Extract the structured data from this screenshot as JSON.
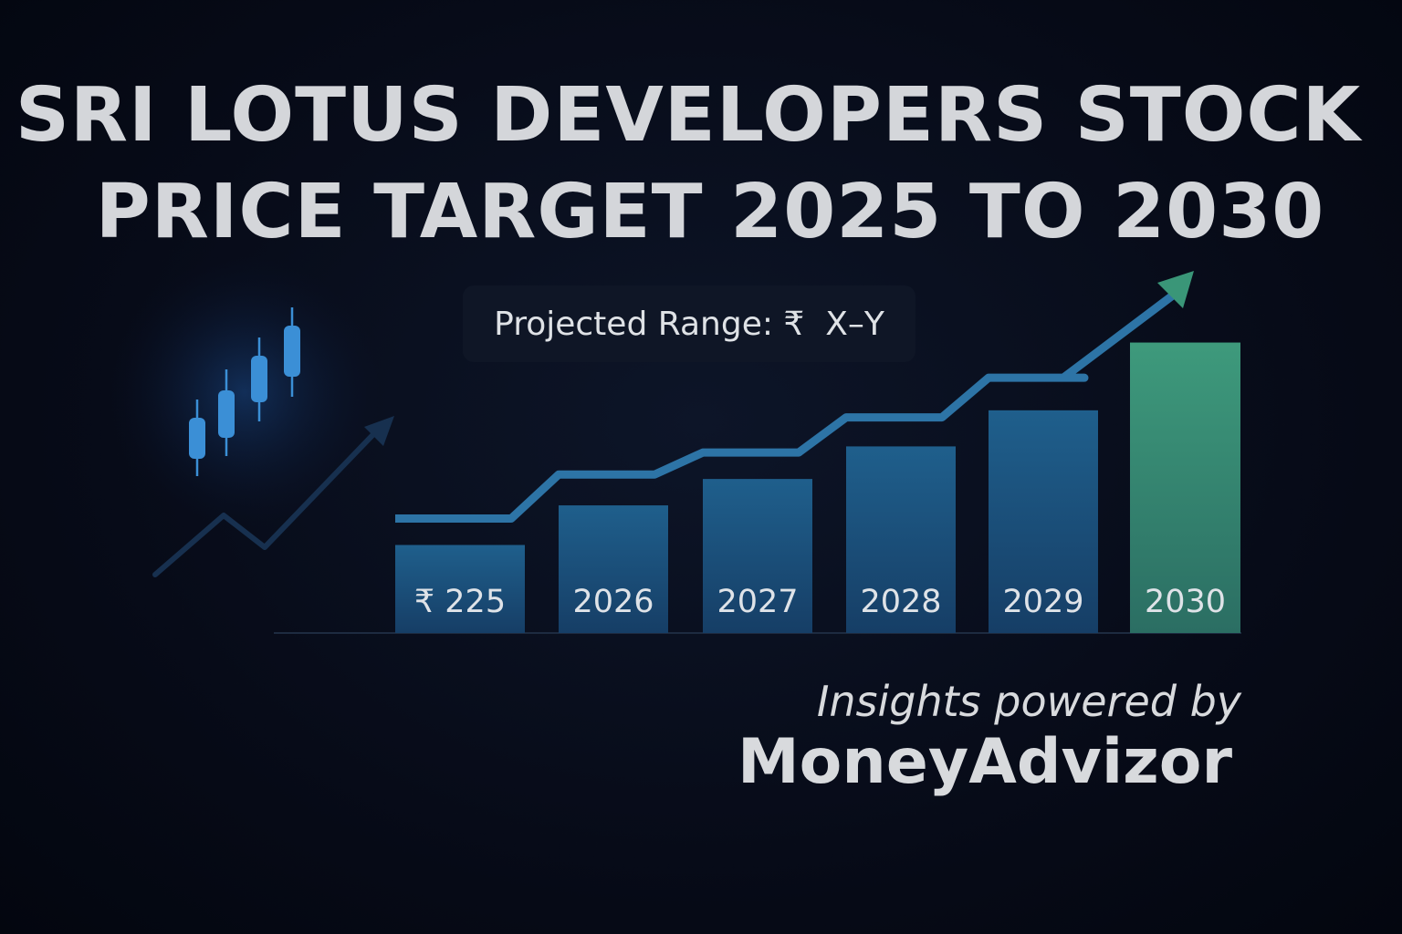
{
  "title_lines": [
    "SRI LOTUS DEVELOPERS STOCK",
    "PRICE TARGET 2025 TO 2030"
  ],
  "projected_range": "Projected Range: ₹  X–Y",
  "credit": {
    "line1": "Insights powered by",
    "brand": "MoneyAdvizor"
  },
  "colors": {
    "bar_blue_top": "#1f5f8c",
    "bar_blue_bottom": "#163e66",
    "bar_green_top": "#3e9a7c",
    "bar_green_bottom": "#2b6e63",
    "trend_line": "#2d74a6",
    "arrow_green": "#3a9678",
    "candles": "#3b8fd6"
  },
  "chart_data": {
    "type": "bar",
    "categories": [
      "₹ 225",
      "2026",
      "2027",
      "2028",
      "2029",
      "2030"
    ],
    "values": [
      1.0,
      1.45,
      1.75,
      2.12,
      2.53,
      3.3
    ],
    "highlight_index": 5,
    "trend_line": [
      1.3,
      1.8,
      2.05,
      2.45,
      2.9,
      3.8
    ],
    "decorations": [
      "candlestick-icon",
      "trend-arrow-icon"
    ]
  }
}
